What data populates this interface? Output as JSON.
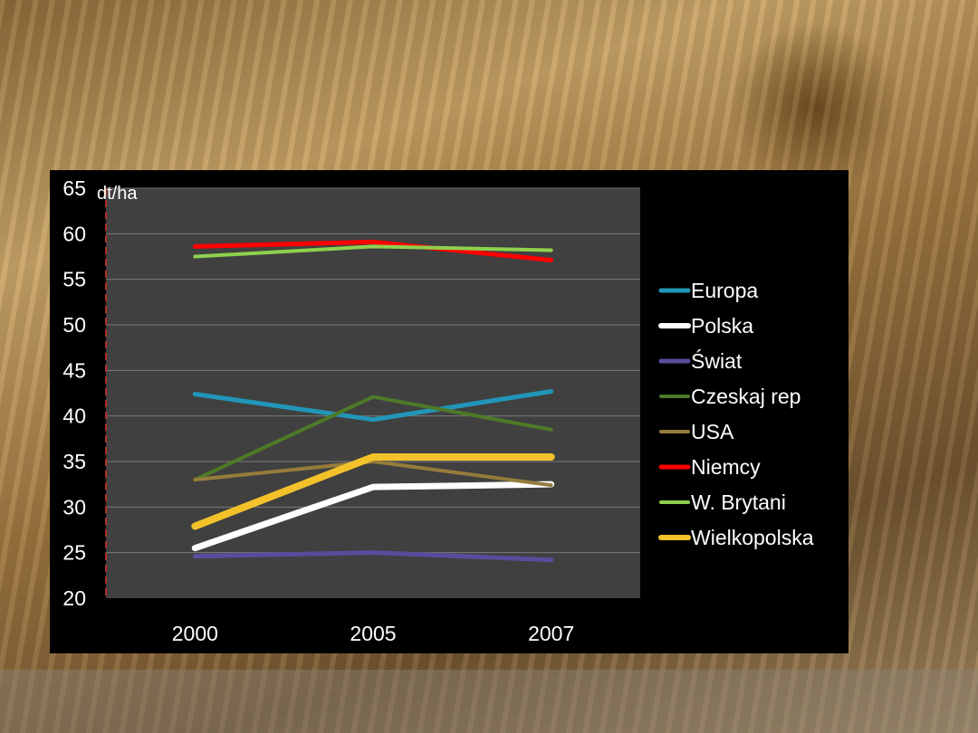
{
  "chart_data": {
    "type": "line",
    "ylabel": "dt/ha",
    "categories": [
      "2000",
      "2005",
      "2007"
    ],
    "ylim": [
      20,
      65
    ],
    "yticks": [
      20,
      25,
      30,
      35,
      40,
      45,
      50,
      55,
      60,
      65
    ],
    "grid": true,
    "legend_position": "right",
    "series": [
      {
        "name": " Europa",
        "color": "#2196b9",
        "width": 5,
        "values": [
          42.4,
          39.6,
          42.7
        ]
      },
      {
        "name": "Polska",
        "color": "#ffffff",
        "width": 7,
        "values": [
          25.5,
          32.2,
          32.5
        ]
      },
      {
        "name": "Świat",
        "color": "#5a4b9c",
        "width": 5,
        "values": [
          24.6,
          25.0,
          24.2
        ]
      },
      {
        "name": "Czeskaj rep",
        "color": "#4e7a27",
        "width": 4,
        "values": [
          33.0,
          42.1,
          38.5
        ]
      },
      {
        "name": "USA",
        "color": "#957b3c",
        "width": 4,
        "values": [
          33.0,
          35.0,
          32.4
        ]
      },
      {
        "name": "Niemcy",
        "color": "#ff0000",
        "width": 5,
        "values": [
          58.6,
          59.1,
          57.1
        ]
      },
      {
        "name": "W. Brytani",
        "color": "#8ed14e",
        "width": 4,
        "values": [
          57.5,
          58.6,
          58.2
        ]
      },
      {
        "name": "Wielkopolska",
        "color": "#f3c22b",
        "width": 8,
        "values": [
          27.9,
          35.5,
          35.5
        ]
      }
    ]
  }
}
